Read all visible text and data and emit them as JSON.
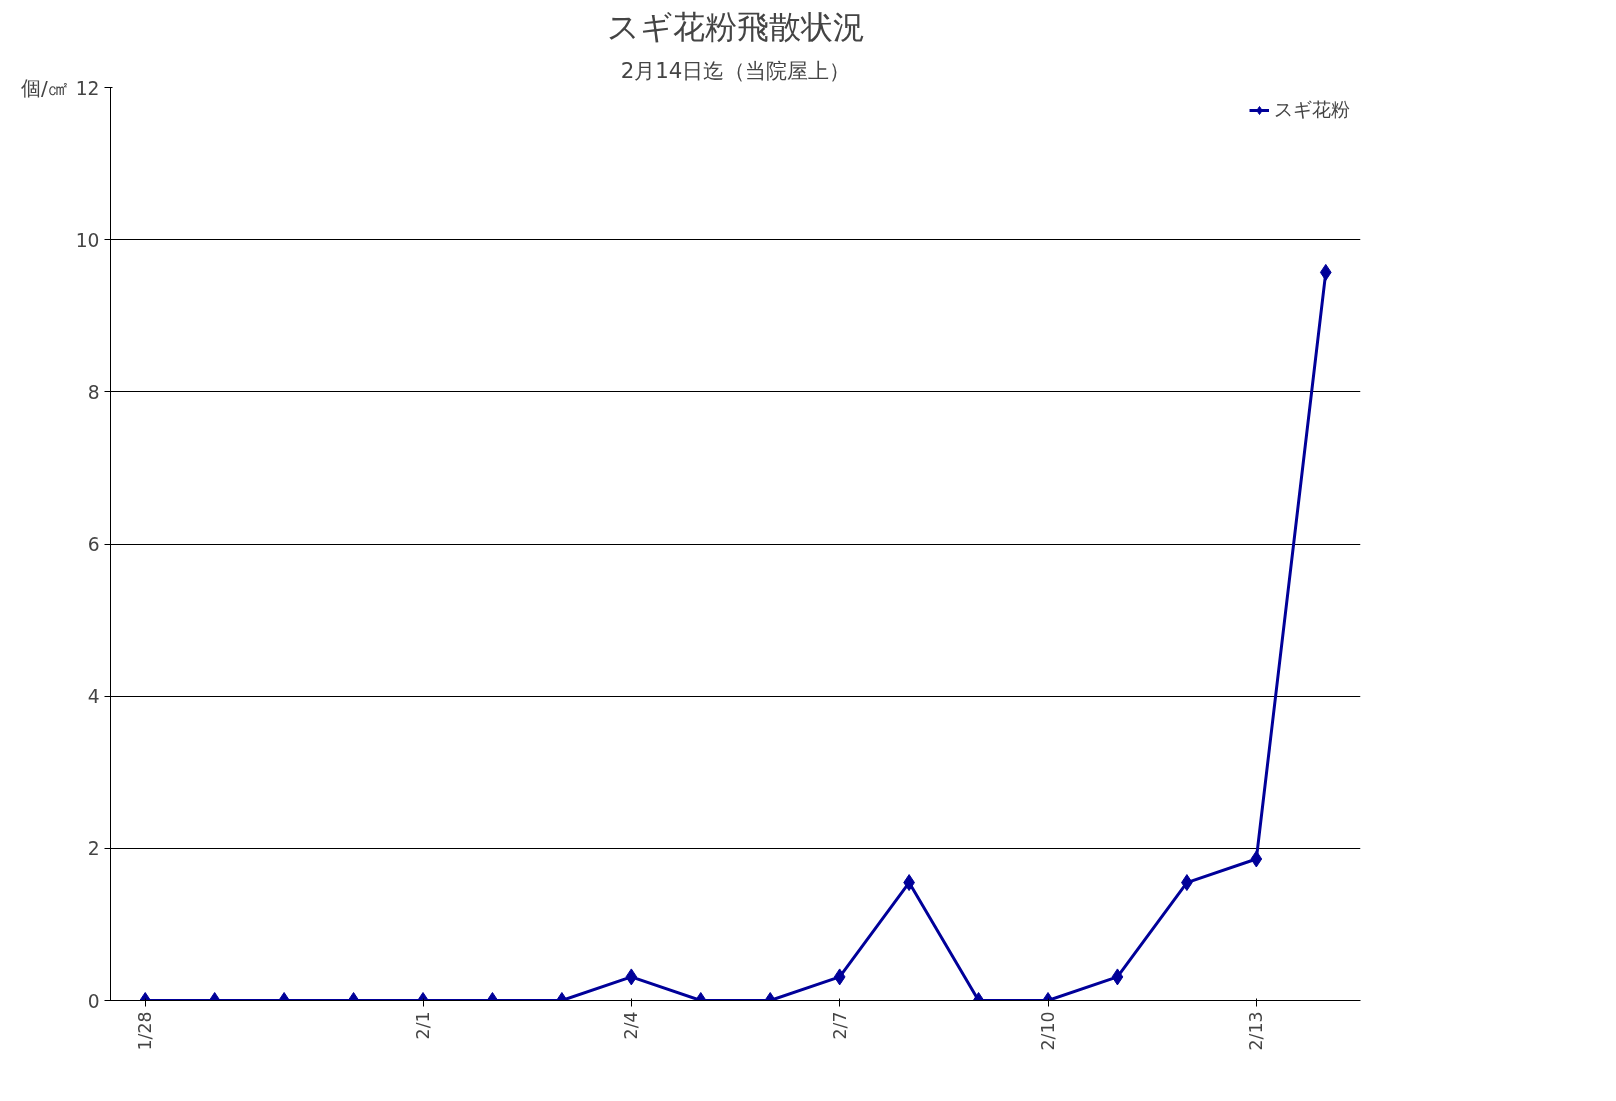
{
  "chart_data": {
    "type": "line",
    "title": "スギ花粉飛散状況",
    "subtitle": "2月14日迄（当院屋上）",
    "ylabel": "個/㎠",
    "categories": [
      "1/28",
      null,
      null,
      null,
      "2/1",
      null,
      null,
      "2/4",
      null,
      null,
      "2/7",
      null,
      null,
      "2/10",
      null,
      null,
      "2/13",
      null
    ],
    "series": [
      {
        "name": "スギ花粉",
        "color": "#000099",
        "values": [
          0,
          0,
          0,
          0,
          0,
          0,
          0,
          0.31,
          0,
          0,
          0.31,
          1.55,
          0,
          0,
          0.31,
          1.55,
          1.86,
          9.57
        ]
      }
    ],
    "ylim": [
      0,
      12
    ],
    "yticks": [
      0,
      2,
      4,
      6,
      8,
      10,
      12
    ],
    "grid": "y",
    "legend": "top right",
    "marker": "diamond",
    "line_style": "solid"
  }
}
